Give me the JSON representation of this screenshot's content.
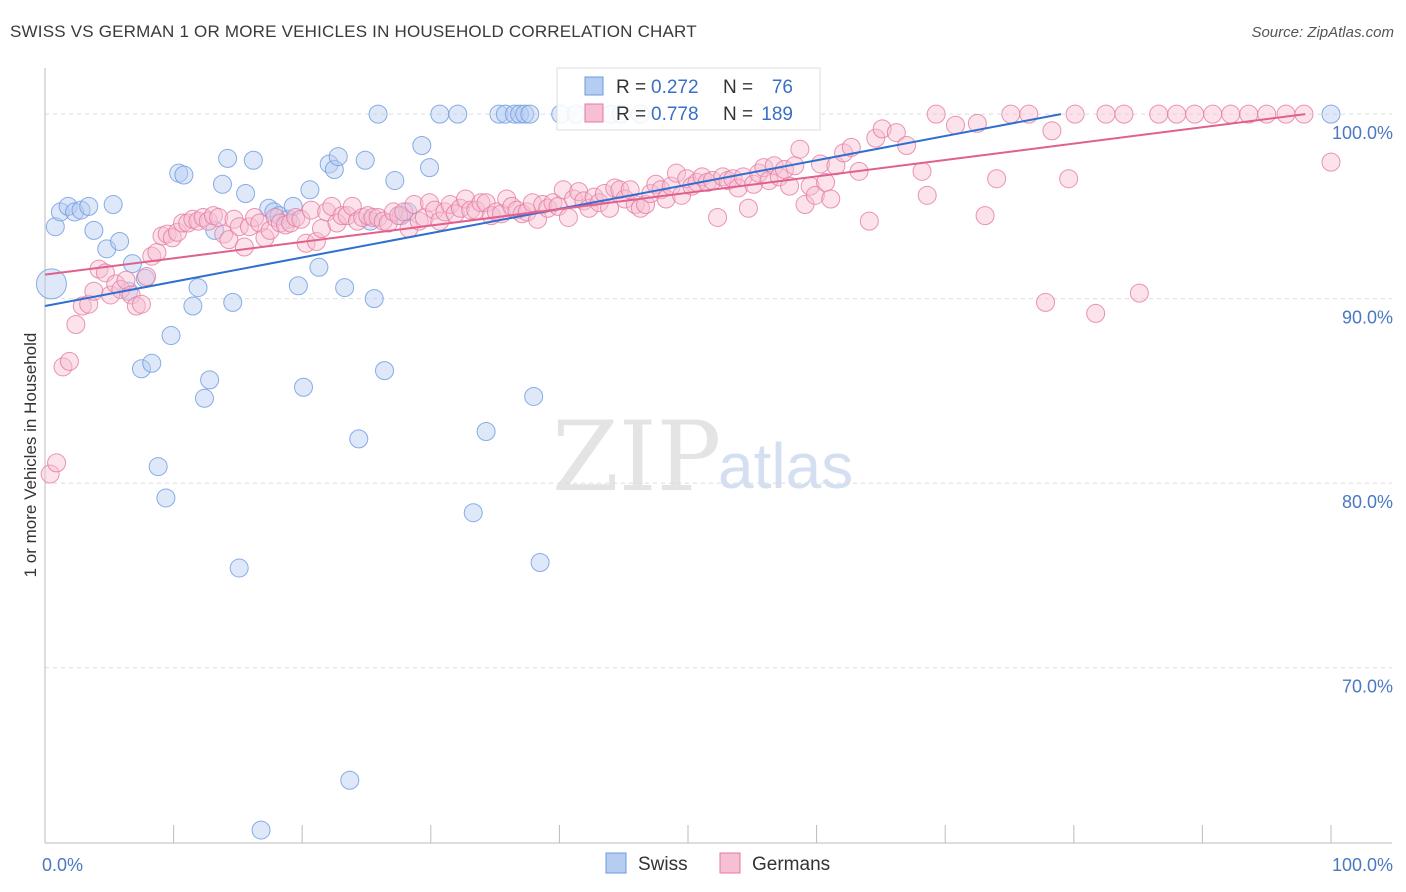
{
  "title": "SWISS VS GERMAN 1 OR MORE VEHICLES IN HOUSEHOLD CORRELATION CHART",
  "source": "Source: ZipAtlas.com",
  "watermark": {
    "zip": "ZIP",
    "atlas": "atlas"
  },
  "chart_data": {
    "type": "scatter",
    "ylabel": "1 or more Vehicles in Household",
    "xlim": [
      0,
      100
    ],
    "ylim": [
      60.5,
      102.5
    ],
    "x_tick_labels": [
      "0.0%",
      "100.0%"
    ],
    "y_ticks": [
      {
        "value": 100,
        "label": "100.0%"
      },
      {
        "value": 90,
        "label": "90.0%"
      },
      {
        "value": 80,
        "label": "80.0%"
      },
      {
        "value": 70,
        "label": "70.0%"
      }
    ],
    "grid": true,
    "legend_position": "top-center",
    "stats_legend": [
      {
        "series": "Swiss",
        "r_label": "R =",
        "r_value": "0.272",
        "n_label": "N =",
        "n_value": "76"
      },
      {
        "series": "Germans",
        "r_label": "R =",
        "r_value": "0.778",
        "n_label": "N =",
        "n_value": "189"
      }
    ],
    "series": [
      {
        "name": "Swiss",
        "color": "#6b9ae0",
        "fill": "#b5cdf1",
        "trend": {
          "x1": 0,
          "y1": 89.6,
          "x2": 79,
          "y2": 100
        },
        "points": [
          [
            0.5,
            90.8
          ],
          [
            0.8,
            93.9
          ],
          [
            1.2,
            94.7
          ],
          [
            1.8,
            95.0
          ],
          [
            2.3,
            94.7
          ],
          [
            2.8,
            94.8
          ],
          [
            3.4,
            95.0
          ],
          [
            3.8,
            93.7
          ],
          [
            4.8,
            92.7
          ],
          [
            5.3,
            95.1
          ],
          [
            5.8,
            93.1
          ],
          [
            6.5,
            90.4
          ],
          [
            6.8,
            91.9
          ],
          [
            7.5,
            86.2
          ],
          [
            7.8,
            91.1
          ],
          [
            8.3,
            86.5
          ],
          [
            8.8,
            80.9
          ],
          [
            9.4,
            79.2
          ],
          [
            9.8,
            88.0
          ],
          [
            10.4,
            96.8
          ],
          [
            10.8,
            96.7
          ],
          [
            11.5,
            89.6
          ],
          [
            11.9,
            90.6
          ],
          [
            12.4,
            84.6
          ],
          [
            12.8,
            85.6
          ],
          [
            13.2,
            93.7
          ],
          [
            13.8,
            96.2
          ],
          [
            14.2,
            97.6
          ],
          [
            14.6,
            89.8
          ],
          [
            15.1,
            75.4
          ],
          [
            15.6,
            95.7
          ],
          [
            16.2,
            97.5
          ],
          [
            16.8,
            61.2
          ],
          [
            17.4,
            94.9
          ],
          [
            17.8,
            94.7
          ],
          [
            18.2,
            94.5
          ],
          [
            18.9,
            94.3
          ],
          [
            19.3,
            95.0
          ],
          [
            19.7,
            90.7
          ],
          [
            20.1,
            85.2
          ],
          [
            20.6,
            95.9
          ],
          [
            21.3,
            91.7
          ],
          [
            22.1,
            97.3
          ],
          [
            22.5,
            97.0
          ],
          [
            22.8,
            97.7
          ],
          [
            23.3,
            90.6
          ],
          [
            23.7,
            63.9
          ],
          [
            24.4,
            82.4
          ],
          [
            24.9,
            97.5
          ],
          [
            25.3,
            94.2
          ],
          [
            25.6,
            90.0
          ],
          [
            25.9,
            100
          ],
          [
            26.4,
            86.1
          ],
          [
            27.2,
            96.4
          ],
          [
            27.7,
            94.5
          ],
          [
            28.2,
            94.7
          ],
          [
            29.3,
            98.3
          ],
          [
            29.9,
            97.1
          ],
          [
            30.7,
            100
          ],
          [
            32.1,
            100
          ],
          [
            33.3,
            78.4
          ],
          [
            34.3,
            82.8
          ],
          [
            35.3,
            100
          ],
          [
            35.8,
            100
          ],
          [
            36.5,
            100
          ],
          [
            36.9,
            100
          ],
          [
            37.3,
            100
          ],
          [
            37.7,
            100
          ],
          [
            38.0,
            84.7
          ],
          [
            38.5,
            75.7
          ],
          [
            40.1,
            100
          ],
          [
            41.3,
            100
          ],
          [
            44.0,
            100
          ],
          [
            44.8,
            100
          ],
          [
            46.3,
            100
          ],
          [
            100,
            100
          ]
        ]
      },
      {
        "name": "Germans",
        "color": "#e67aa0",
        "fill": "#f6bfd3",
        "trend": {
          "x1": 0,
          "y1": 91.3,
          "x2": 98,
          "y2": 100
        },
        "points": [
          [
            0.4,
            80.5
          ],
          [
            0.9,
            81.1
          ],
          [
            1.4,
            86.3
          ],
          [
            1.9,
            86.6
          ],
          [
            2.4,
            88.6
          ],
          [
            2.9,
            89.6
          ],
          [
            3.4,
            89.7
          ],
          [
            3.8,
            90.4
          ],
          [
            4.2,
            91.6
          ],
          [
            4.7,
            91.4
          ],
          [
            5.1,
            90.2
          ],
          [
            5.5,
            90.8
          ],
          [
            5.9,
            90.5
          ],
          [
            6.3,
            91.0
          ],
          [
            6.7,
            90.2
          ],
          [
            7.1,
            89.6
          ],
          [
            7.5,
            89.7
          ],
          [
            7.9,
            91.2
          ],
          [
            8.3,
            92.3
          ],
          [
            8.7,
            92.5
          ],
          [
            9.1,
            93.4
          ],
          [
            9.5,
            93.5
          ],
          [
            9.9,
            93.3
          ],
          [
            10.3,
            93.6
          ],
          [
            10.7,
            94.1
          ],
          [
            11.1,
            94.1
          ],
          [
            11.5,
            94.3
          ],
          [
            11.9,
            94.2
          ],
          [
            12.3,
            94.4
          ],
          [
            12.7,
            94.2
          ],
          [
            13.1,
            94.5
          ],
          [
            13.5,
            94.4
          ],
          [
            13.9,
            93.5
          ],
          [
            14.3,
            93.2
          ],
          [
            14.7,
            94.3
          ],
          [
            15.1,
            93.9
          ],
          [
            15.5,
            92.8
          ],
          [
            15.9,
            93.9
          ],
          [
            16.3,
            94.4
          ],
          [
            16.7,
            94.1
          ],
          [
            17.1,
            93.3
          ],
          [
            17.5,
            93.7
          ],
          [
            17.9,
            94.4
          ],
          [
            18.3,
            94.1
          ],
          [
            18.7,
            94.0
          ],
          [
            19.1,
            94.1
          ],
          [
            19.5,
            94.4
          ],
          [
            19.9,
            94.3
          ],
          [
            20.3,
            93.0
          ],
          [
            20.7,
            94.8
          ],
          [
            21.1,
            93.1
          ],
          [
            21.5,
            93.8
          ],
          [
            21.9,
            94.7
          ],
          [
            22.3,
            95.0
          ],
          [
            22.7,
            94.1
          ],
          [
            23.1,
            94.5
          ],
          [
            23.5,
            94.5
          ],
          [
            23.9,
            95.0
          ],
          [
            24.3,
            94.2
          ],
          [
            24.7,
            94.4
          ],
          [
            25.1,
            94.5
          ],
          [
            25.5,
            94.4
          ],
          [
            25.9,
            94.4
          ],
          [
            26.3,
            94.2
          ],
          [
            26.7,
            94.1
          ],
          [
            27.1,
            94.7
          ],
          [
            27.5,
            94.5
          ],
          [
            27.9,
            94.7
          ],
          [
            28.3,
            93.8
          ],
          [
            28.7,
            95.1
          ],
          [
            29.1,
            94.2
          ],
          [
            29.5,
            94.4
          ],
          [
            29.9,
            95.2
          ],
          [
            30.3,
            94.8
          ],
          [
            30.7,
            94.2
          ],
          [
            31.1,
            94.7
          ],
          [
            31.5,
            95.1
          ],
          [
            31.9,
            94.6
          ],
          [
            32.3,
            94.9
          ],
          [
            32.7,
            95.4
          ],
          [
            33.1,
            94.8
          ],
          [
            33.5,
            94.8
          ],
          [
            33.9,
            95.2
          ],
          [
            34.3,
            95.2
          ],
          [
            34.7,
            94.5
          ],
          [
            35.1,
            94.7
          ],
          [
            35.5,
            94.6
          ],
          [
            35.9,
            95.4
          ],
          [
            36.3,
            95.0
          ],
          [
            36.7,
            94.8
          ],
          [
            37.1,
            94.6
          ],
          [
            37.5,
            94.7
          ],
          [
            37.9,
            95.2
          ],
          [
            38.3,
            94.3
          ],
          [
            38.7,
            95.1
          ],
          [
            39.1,
            94.9
          ],
          [
            39.5,
            95.2
          ],
          [
            39.9,
            95.0
          ],
          [
            40.3,
            95.9
          ],
          [
            40.7,
            94.4
          ],
          [
            41.1,
            95.4
          ],
          [
            41.5,
            95.8
          ],
          [
            41.9,
            95.3
          ],
          [
            42.3,
            94.9
          ],
          [
            42.7,
            95.5
          ],
          [
            43.1,
            95.2
          ],
          [
            43.5,
            95.7
          ],
          [
            43.9,
            94.9
          ],
          [
            44.3,
            96.0
          ],
          [
            44.7,
            95.9
          ],
          [
            45.1,
            95.4
          ],
          [
            45.5,
            95.9
          ],
          [
            45.9,
            95.1
          ],
          [
            46.3,
            94.9
          ],
          [
            46.7,
            95.1
          ],
          [
            47.1,
            95.7
          ],
          [
            47.5,
            96.2
          ],
          [
            47.9,
            95.9
          ],
          [
            48.3,
            95.4
          ],
          [
            48.7,
            96.1
          ],
          [
            49.1,
            96.8
          ],
          [
            49.5,
            95.6
          ],
          [
            49.9,
            96.5
          ],
          [
            50.3,
            96.1
          ],
          [
            50.7,
            96.3
          ],
          [
            51.1,
            96.6
          ],
          [
            51.5,
            96.3
          ],
          [
            51.9,
            96.4
          ],
          [
            52.3,
            94.4
          ],
          [
            52.7,
            96.6
          ],
          [
            53.1,
            96.4
          ],
          [
            53.5,
            96.5
          ],
          [
            53.9,
            96.0
          ],
          [
            54.3,
            96.6
          ],
          [
            54.7,
            94.9
          ],
          [
            55.1,
            96.2
          ],
          [
            55.5,
            96.8
          ],
          [
            55.9,
            97.1
          ],
          [
            56.3,
            96.4
          ],
          [
            56.7,
            97.2
          ],
          [
            57.1,
            96.6
          ],
          [
            57.5,
            97.0
          ],
          [
            57.9,
            96.1
          ],
          [
            58.3,
            97.2
          ],
          [
            58.7,
            98.1
          ],
          [
            59.1,
            95.1
          ],
          [
            59.5,
            96.1
          ],
          [
            59.9,
            95.6
          ],
          [
            60.3,
            97.3
          ],
          [
            60.7,
            96.3
          ],
          [
            61.1,
            95.4
          ],
          [
            61.5,
            97.2
          ],
          [
            62.1,
            97.9
          ],
          [
            62.7,
            98.2
          ],
          [
            63.3,
            96.9
          ],
          [
            64.1,
            94.2
          ],
          [
            64.6,
            98.7
          ],
          [
            65.1,
            99.2
          ],
          [
            66.2,
            99.0
          ],
          [
            67.0,
            98.3
          ],
          [
            68.2,
            96.9
          ],
          [
            68.6,
            95.6
          ],
          [
            69.3,
            100
          ],
          [
            70.8,
            99.4
          ],
          [
            72.5,
            99.5
          ],
          [
            73.1,
            94.5
          ],
          [
            74.0,
            96.5
          ],
          [
            75.1,
            100
          ],
          [
            76.5,
            100
          ],
          [
            77.8,
            89.8
          ],
          [
            78.3,
            99.1
          ],
          [
            79.6,
            96.5
          ],
          [
            80.1,
            100
          ],
          [
            81.7,
            89.2
          ],
          [
            82.5,
            100
          ],
          [
            83.9,
            100
          ],
          [
            85.1,
            90.3
          ],
          [
            86.6,
            100
          ],
          [
            88.0,
            100
          ],
          [
            89.4,
            100
          ],
          [
            90.8,
            100
          ],
          [
            92.2,
            100
          ],
          [
            93.6,
            100
          ],
          [
            95.0,
            100
          ],
          [
            96.5,
            100
          ],
          [
            97.9,
            100
          ],
          [
            100,
            97.4
          ]
        ]
      }
    ]
  }
}
